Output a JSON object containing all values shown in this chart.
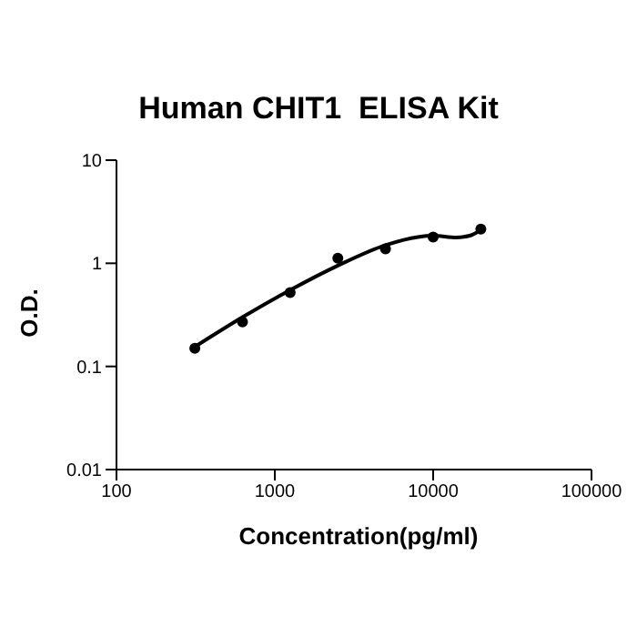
{
  "chart_data": {
    "type": "scatter",
    "title": "Human CHIT1  ELISA Kit",
    "xlabel": "Concentration(pg/ml)",
    "ylabel": "O.D.",
    "log": "xy",
    "grid": false,
    "legend": false,
    "xlim": [
      100,
      100000
    ],
    "xticks": [
      100,
      1000,
      10000,
      100000
    ],
    "ylim": [
      0.01,
      10
    ],
    "yticks": [
      0.01,
      0.1,
      1,
      10
    ],
    "series": [
      {
        "color": "#000000",
        "marker": "circle",
        "x": [
          312.5,
          625,
          1250,
          2500,
          5000,
          10000,
          20000
        ],
        "values": [
          0.15,
          0.27,
          0.52,
          1.12,
          1.38,
          1.8,
          2.15
        ]
      },
      {
        "type": "line",
        "color": "#000000",
        "marker": "none",
        "line_style": "solid",
        "x": [
          312.5,
          625,
          1250,
          2500,
          5000,
          8000,
          10000,
          14000,
          17000,
          20000
        ],
        "values": [
          0.155,
          0.3,
          0.55,
          0.95,
          1.5,
          1.8,
          1.85,
          1.78,
          1.85,
          2.1
        ]
      }
    ]
  }
}
